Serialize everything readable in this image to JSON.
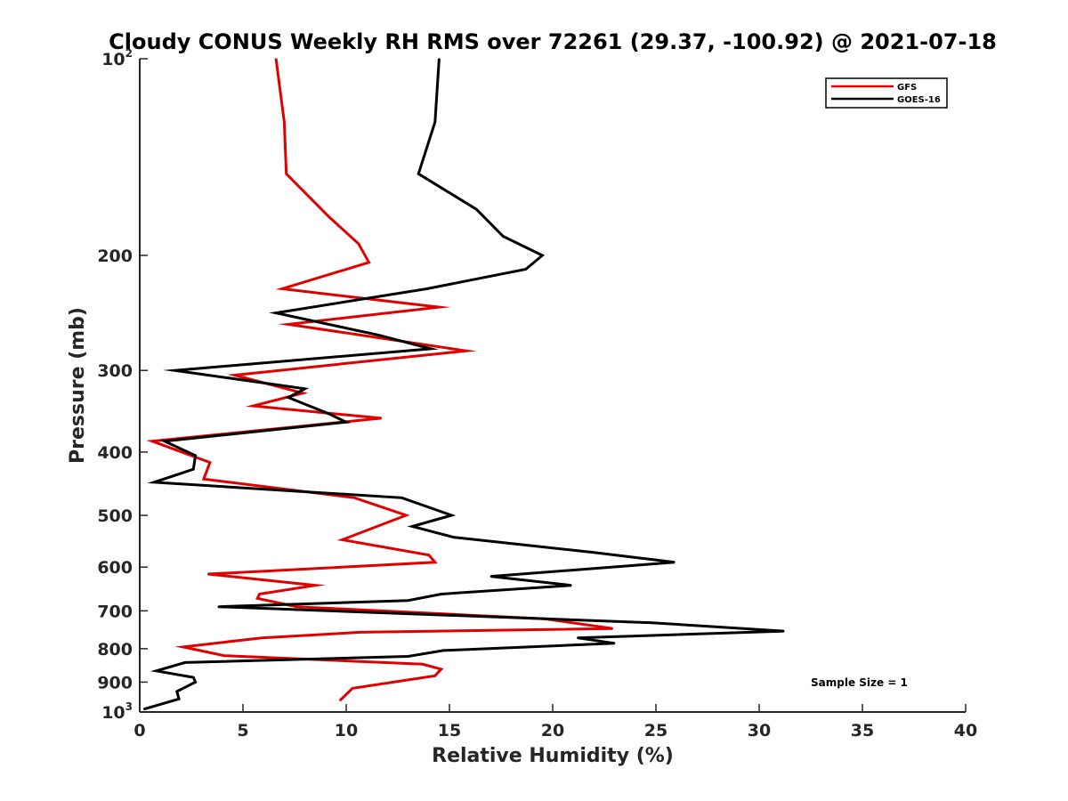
{
  "chart_data": {
    "type": "line",
    "title": "Cloudy CONUS Weekly RH RMS over 72261 (29.37, -100.92) @ 2021-07-18",
    "xlabel": "Relative Humidity (%)",
    "ylabel": "Pressure (mb)",
    "xlim": [
      0,
      40
    ],
    "ylim": [
      100,
      1000
    ],
    "y_scale": "log",
    "y_reversed": true,
    "grid": false,
    "legend_position": "top-right",
    "annotation": "Sample Size = 1",
    "x_ticks": [
      "0",
      "5",
      "10",
      "15",
      "20",
      "25",
      "30",
      "35",
      "40"
    ],
    "y_ticks": [
      {
        "value": 100,
        "base": "10",
        "sup": "2"
      },
      {
        "value": 200,
        "base": "200",
        "sup": ""
      },
      {
        "value": 300,
        "base": "300",
        "sup": ""
      },
      {
        "value": 400,
        "base": "400",
        "sup": ""
      },
      {
        "value": 500,
        "base": "500",
        "sup": ""
      },
      {
        "value": 600,
        "base": "600",
        "sup": ""
      },
      {
        "value": 700,
        "base": "700",
        "sup": ""
      },
      {
        "value": 800,
        "base": "800",
        "sup": ""
      },
      {
        "value": 900,
        "base": "900",
        "sup": ""
      },
      {
        "value": 1000,
        "base": "10",
        "sup": "3"
      }
    ],
    "series": [
      {
        "name": "GFS",
        "color": "#e00000",
        "points": [
          [
            6.6,
            100
          ],
          [
            7.0,
            125
          ],
          [
            7.1,
            150
          ],
          [
            9.2,
            175
          ],
          [
            10.6,
            192
          ],
          [
            11.1,
            205
          ],
          [
            6.9,
            225
          ],
          [
            14.5,
            240
          ],
          [
            7.2,
            255
          ],
          [
            15.8,
            280
          ],
          [
            4.6,
            305
          ],
          [
            7.9,
            325
          ],
          [
            5.5,
            340
          ],
          [
            11.7,
            355
          ],
          [
            0.6,
            385
          ],
          [
            3.4,
            415
          ],
          [
            3.1,
            440
          ],
          [
            10.4,
            470
          ],
          [
            12.9,
            500
          ],
          [
            9.8,
            545
          ],
          [
            14.0,
            575
          ],
          [
            14.3,
            590
          ],
          [
            3.3,
            615
          ],
          [
            8.5,
            640
          ],
          [
            5.8,
            660
          ],
          [
            5.7,
            670
          ],
          [
            7.6,
            690
          ],
          [
            19.6,
            720
          ],
          [
            22.9,
            745
          ],
          [
            10.7,
            755
          ],
          [
            5.9,
            770
          ],
          [
            2.1,
            795
          ],
          [
            4.1,
            820
          ],
          [
            13.7,
            845
          ],
          [
            14.6,
            860
          ],
          [
            14.3,
            880
          ],
          [
            10.3,
            920
          ],
          [
            9.7,
            960
          ]
        ]
      },
      {
        "name": "GOES-16",
        "color": "#000000",
        "points": [
          [
            14.5,
            100
          ],
          [
            14.3,
            125
          ],
          [
            13.5,
            150
          ],
          [
            16.3,
            170
          ],
          [
            17.6,
            187
          ],
          [
            19.5,
            200
          ],
          [
            18.7,
            210
          ],
          [
            13.9,
            225
          ],
          [
            6.6,
            245
          ],
          [
            11.6,
            265
          ],
          [
            14.1,
            278
          ],
          [
            1.7,
            300
          ],
          [
            8.0,
            320
          ],
          [
            7.2,
            330
          ],
          [
            9.2,
            350
          ],
          [
            10.0,
            360
          ],
          [
            1.2,
            385
          ],
          [
            2.7,
            405
          ],
          [
            2.6,
            425
          ],
          [
            0.7,
            445
          ],
          [
            12.7,
            470
          ],
          [
            15.1,
            500
          ],
          [
            13.2,
            520
          ],
          [
            15.2,
            540
          ],
          [
            22.0,
            570
          ],
          [
            25.9,
            590
          ],
          [
            17.0,
            620
          ],
          [
            20.9,
            640
          ],
          [
            14.6,
            660
          ],
          [
            13.0,
            675
          ],
          [
            3.8,
            690
          ],
          [
            24.8,
            730
          ],
          [
            31.2,
            752
          ],
          [
            21.2,
            770
          ],
          [
            23.0,
            785
          ],
          [
            14.7,
            805
          ],
          [
            13.0,
            822
          ],
          [
            2.2,
            840
          ],
          [
            0.8,
            865
          ],
          [
            2.6,
            885
          ],
          [
            2.7,
            900
          ],
          [
            1.8,
            930
          ],
          [
            1.9,
            955
          ],
          [
            0.2,
            990
          ]
        ]
      }
    ]
  }
}
